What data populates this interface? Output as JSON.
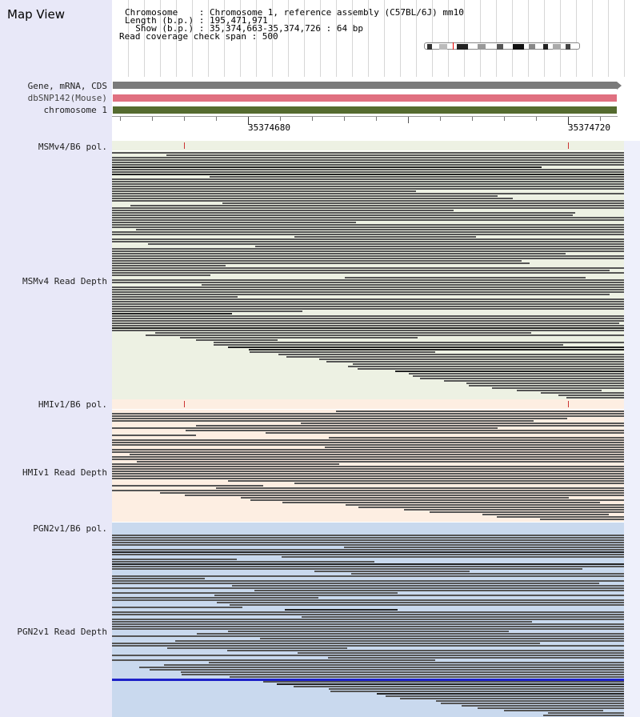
{
  "title": "Map View",
  "info": {
    "line1": "Chromosome    : Chromosome 1, reference assembly (C57BL/6J) mm10",
    "line2": "Length (b.p.) : 195,471,971",
    "line3": "  Show (b.p.) : 35,374,663-35,374,726 : 64 bp",
    "line4": "Read coverage check span : 500"
  },
  "tracks": {
    "gene": "Gene, mRNA, CDS",
    "dbsnp": "dbSNP142(Mouse)",
    "chromosome": "chromosome 1"
  },
  "ruler": {
    "tick1": "35374680",
    "tick2": "35374720"
  },
  "groups": [
    {
      "pol": "MSMv4/B6 pol.",
      "depth": "MSMv4 Read Depth",
      "color": "#edf1e3"
    },
    {
      "pol": "HMIv1/B6 pol.",
      "depth": "HMIv1 Read Depth",
      "color": "#fdeee2"
    },
    {
      "pol": "PGN2v1/B6 pol.",
      "depth": "PGN2v1 Read Depth",
      "color": "#c9d9ee"
    }
  ],
  "colors": {
    "gene_bar": "#7a7a7a",
    "dbsnp_bar": "#e07080",
    "chromosome_bar": "#556b2f",
    "read": "#555555",
    "snp_mark": "#cc3333",
    "highlight_read": "#1e22c8"
  }
}
